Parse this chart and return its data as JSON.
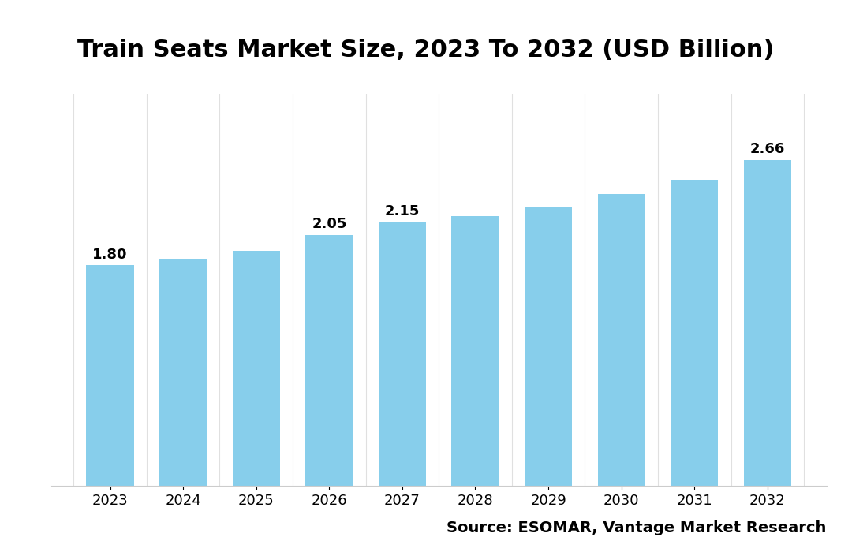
{
  "title": "Train Seats Market Size, 2023 To 2032 (USD Billion)",
  "years": [
    2023,
    2024,
    2025,
    2026,
    2027,
    2028,
    2029,
    2030,
    2031,
    2032
  ],
  "values": [
    1.8,
    1.85,
    1.92,
    2.05,
    2.15,
    2.2,
    2.28,
    2.38,
    2.5,
    2.66
  ],
  "labeled_indices": [
    0,
    3,
    4,
    9
  ],
  "bar_color": "#87CEEB",
  "bar_edgecolor": "none",
  "background_color": "#ffffff",
  "title_fontsize": 22,
  "title_fontweight": "bold",
  "annotation_fontsize": 13,
  "annotation_fontweight": "bold",
  "tick_fontsize": 13,
  "source_text": "Source: ESOMAR, Vantage Market Research",
  "source_fontsize": 14,
  "source_fontweight": "bold",
  "ylim": [
    0,
    3.2
  ],
  "grid_color": "#e0e0e0",
  "grid_linewidth": 0.8
}
